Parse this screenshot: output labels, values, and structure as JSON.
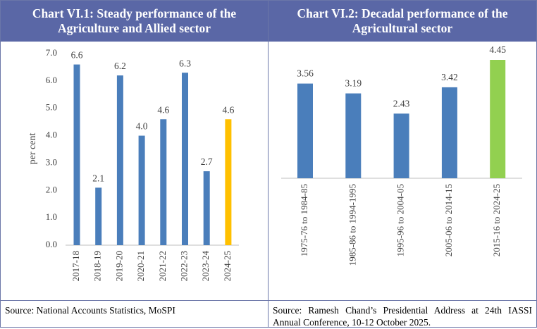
{
  "chart_data": [
    {
      "type": "bar",
      "title": "Chart VI.1: Steady performance of the Agriculture and Allied sector",
      "y_label": "per cent",
      "categories": [
        "2017-18",
        "2018-19",
        "2019-20",
        "2020-21",
        "2021-22",
        "2022-23",
        "2023-24",
        "2024-25"
      ],
      "values": [
        6.6,
        2.1,
        6.2,
        4.0,
        4.6,
        6.3,
        2.7,
        4.6
      ],
      "value_labels": [
        "6.6",
        "2.1",
        "6.2",
        "4.0",
        "4.6",
        "6.3",
        "2.7",
        "4.6"
      ],
      "colors": [
        "#4a7ebb",
        "#4a7ebb",
        "#4a7ebb",
        "#4a7ebb",
        "#4a7ebb",
        "#4a7ebb",
        "#4a7ebb",
        "#ffc000"
      ],
      "ylim": [
        0,
        7
      ],
      "yticks": [
        {
          "value": 0,
          "label": "0.0"
        },
        {
          "value": 1,
          "label": "1.0"
        },
        {
          "value": 2,
          "label": "2.0"
        },
        {
          "value": 3,
          "label": "3.0"
        },
        {
          "value": 4,
          "label": "4.0"
        },
        {
          "value": 5,
          "label": "5.0"
        },
        {
          "value": 6,
          "label": "6.0"
        },
        {
          "value": 7,
          "label": "7.0"
        }
      ],
      "source": "Source: National Accounts Statistics, MoSPI"
    },
    {
      "type": "bar",
      "title": "Chart VI.2: Decadal performance of the Agricultural sector",
      "categories": [
        "1975-76 to 1984-85",
        "1985-86 to 1994-1995",
        "1995-96 to 2004-05",
        "2005-06 to 2014-15",
        "2015-16 to 2024-25"
      ],
      "values": [
        3.56,
        3.19,
        2.43,
        3.42,
        4.45
      ],
      "colors": [
        "#4a7ebb",
        "#4a7ebb",
        "#4a7ebb",
        "#4a7ebb",
        "#92d050"
      ],
      "source": "Source: Ramesh Chand’s Presidential Address at 24th IASSI Annual Conference, 10-12 October 2025."
    }
  ]
}
